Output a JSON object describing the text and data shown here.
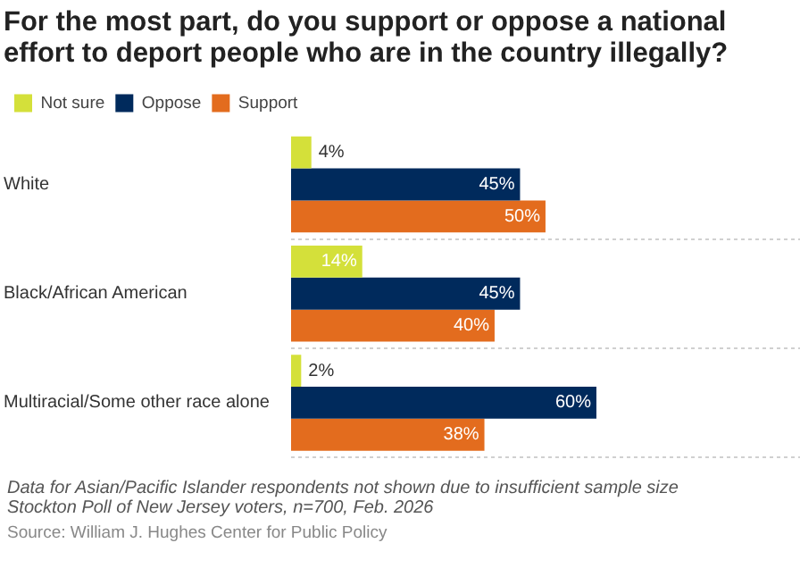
{
  "chart_data": {
    "type": "bar",
    "orientation": "horizontal",
    "title": "For the most part, do you support or oppose a national effort to deport people who are in the country illegally?",
    "categories": [
      "White",
      "Black/African American",
      "Multiracial/Some other race alone"
    ],
    "series": [
      {
        "name": "Not sure",
        "color": "#d4e03a",
        "values": [
          4,
          14,
          2
        ],
        "value_labels": [
          "4%",
          "14%",
          "2%"
        ]
      },
      {
        "name": "Oppose",
        "color": "#002a5c",
        "values": [
          45,
          45,
          60
        ],
        "value_labels": [
          "45%",
          "45%",
          "60%"
        ]
      },
      {
        "name": "Support",
        "color": "#e36c1e",
        "values": [
          50,
          40,
          38
        ],
        "value_labels": [
          "50%",
          "40%",
          "38%"
        ]
      }
    ],
    "xlim": [
      0,
      100
    ],
    "grid": "y",
    "legend": "top left",
    "tick_labels": "y",
    "annotations": [
      "Data for Asian/Pacific Islander respondents not shown due to insufficient sample size",
      "Stockton Poll of New Jersey voters, n=700, Feb. 2026",
      "Source: William J. Hughes Center for Public Policy"
    ]
  }
}
